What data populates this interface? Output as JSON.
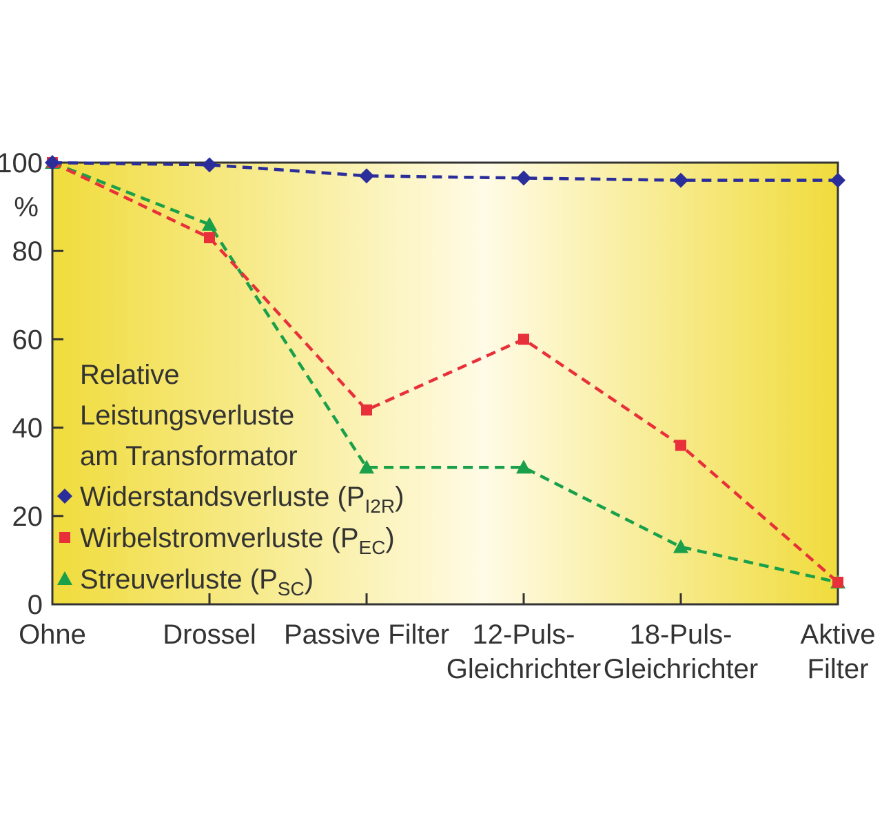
{
  "chart_data": {
    "type": "line",
    "categories": [
      [
        "Ohne"
      ],
      [
        "Drossel"
      ],
      [
        "Passive Filter"
      ],
      [
        "12-Puls-",
        "Gleichrichter"
      ],
      [
        "18-Puls-",
        "Gleichrichter"
      ],
      [
        "Aktive",
        "Filter"
      ]
    ],
    "ylabel": "%",
    "ylim": [
      0,
      100
    ],
    "yticks": [
      "0",
      "20",
      "40",
      "60",
      "80",
      "100"
    ],
    "legend": {
      "title_lines": [
        "Relative",
        "Leistungsverluste",
        "am Transformator"
      ],
      "placement": "left"
    },
    "series": [
      {
        "name": "Widerstandsverluste (P",
        "subscript": "I2R",
        "suffix": ")",
        "marker": "diamond",
        "color": "#2b2e9a",
        "values": [
          100,
          99.5,
          97,
          96.5,
          96,
          96
        ]
      },
      {
        "name": "Wirbelstromverluste (P",
        "subscript": "EC",
        "suffix": ")",
        "marker": "square",
        "color": "#e8303a",
        "values": [
          100,
          83,
          44,
          60,
          36,
          5
        ]
      },
      {
        "name": "Streuverluste (P",
        "subscript": "SC",
        "suffix": ")",
        "marker": "triangle",
        "color": "#1aa04a",
        "values": [
          100,
          86,
          31,
          31,
          13,
          5
        ]
      }
    ],
    "colors": {
      "gradient_edge": "#f0dc3c",
      "gradient_center": "#fffbe6"
    }
  }
}
